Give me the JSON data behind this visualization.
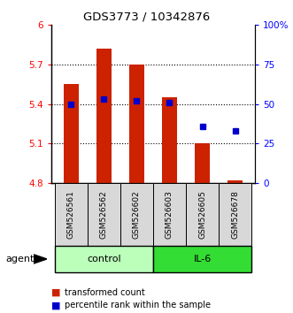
{
  "title": "GDS3773 / 10342876",
  "samples": [
    "GSM526561",
    "GSM526562",
    "GSM526602",
    "GSM526603",
    "GSM526605",
    "GSM526678"
  ],
  "bar_heights": [
    5.55,
    5.82,
    5.7,
    5.45,
    5.1,
    4.82
  ],
  "bar_base": 4.8,
  "bar_color": "#cc2200",
  "blue_percentiles": [
    50,
    53,
    52,
    51,
    36,
    33
  ],
  "ylim_left": [
    4.8,
    6.0
  ],
  "ylim_right": [
    0,
    100
  ],
  "yticks_left": [
    4.8,
    5.1,
    5.4,
    5.7,
    6.0
  ],
  "ytick_labels_left": [
    "4.8",
    "5.1",
    "5.4",
    "5.7",
    "6"
  ],
  "yticks_right": [
    0,
    25,
    50,
    75,
    100
  ],
  "ytick_labels_right": [
    "0",
    "25",
    "50",
    "75",
    "100%"
  ],
  "hlines": [
    5.1,
    5.4,
    5.7
  ],
  "groups": [
    {
      "label": "control",
      "indices": [
        0,
        1,
        2
      ],
      "color": "#bbffbb"
    },
    {
      "label": "IL-6",
      "indices": [
        3,
        4,
        5
      ],
      "color": "#33dd33"
    }
  ],
  "agent_label": "agent",
  "legend_items": [
    {
      "label": "transformed count",
      "color": "#cc2200"
    },
    {
      "label": "percentile rank within the sample",
      "color": "#0000cc"
    }
  ]
}
